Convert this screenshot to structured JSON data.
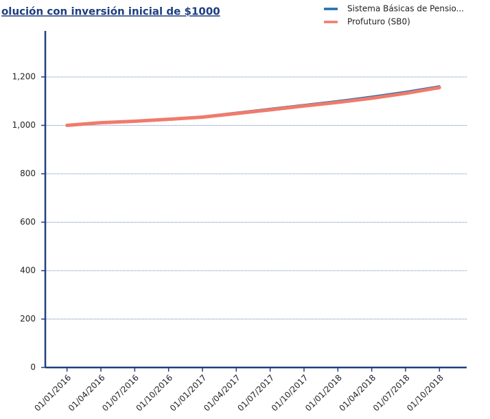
{
  "chart_data": {
    "type": "line",
    "title": "olución con inversión inicial de $1000",
    "categories": [
      "01/01/2016",
      "01/04/2016",
      "01/07/2016",
      "01/10/2016",
      "01/01/2017",
      "01/04/2017",
      "01/07/2017",
      "01/10/2017",
      "01/01/2018",
      "01/04/2018",
      "01/07/2018",
      "01/10/2018"
    ],
    "series": [
      {
        "name": "Sistema Básicas de Pensio...",
        "color": "#1f6fae",
        "values": [
          1000,
          1012,
          1018,
          1027,
          1037,
          1053,
          1069,
          1085,
          1101,
          1119,
          1139,
          1162
        ]
      },
      {
        "name": "Profuturo (SB0)",
        "color": "#f07b6b",
        "values": [
          1000,
          1011,
          1017,
          1025,
          1034,
          1049,
          1064,
          1080,
          1095,
          1112,
          1132,
          1156
        ]
      }
    ],
    "ylim": [
      0,
      1390
    ],
    "yticks": [
      0,
      200,
      400,
      600,
      800,
      {
        "value": 1000,
        "label": "1,000"
      },
      {
        "value": 1200,
        "label": "1,200"
      }
    ],
    "grid": true,
    "legend": "top-right"
  }
}
